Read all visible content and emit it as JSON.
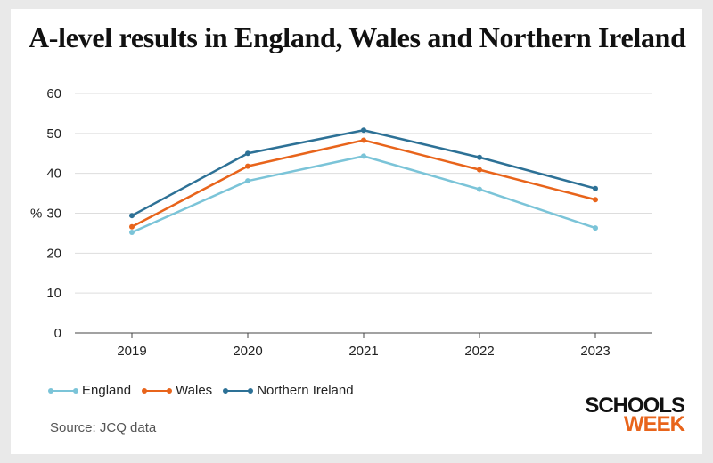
{
  "colors": {
    "england": "#7bc4d8",
    "wales": "#e8641b",
    "northern_ireland": "#2d7196",
    "grid": "#dddddd",
    "axis": "#444444",
    "logo_accent": "#e8641b"
  },
  "source": "Source: JCQ data",
  "logo": {
    "line1": "SCHOOLS",
    "line2": "WEEK"
  },
  "chart_data": {
    "type": "line",
    "title": "A-level results in England, Wales and Northern Ireland",
    "xlabel": "",
    "ylabel": "%",
    "x": [
      "2019",
      "2020",
      "2021",
      "2022",
      "2023"
    ],
    "ylim": [
      0,
      60
    ],
    "yticks": [
      0,
      10,
      20,
      30,
      40,
      50,
      60
    ],
    "grid": true,
    "legend_position": "bottom-left",
    "series": [
      {
        "key": "england",
        "name": "England",
        "values": [
          25.2,
          38.1,
          44.3,
          36.0,
          26.3
        ]
      },
      {
        "key": "wales",
        "name": "Wales",
        "values": [
          26.6,
          41.8,
          48.3,
          40.9,
          33.4
        ]
      },
      {
        "key": "northern_ireland",
        "name": "Northern Ireland",
        "values": [
          29.4,
          45.0,
          50.8,
          44.0,
          36.2
        ]
      }
    ]
  }
}
